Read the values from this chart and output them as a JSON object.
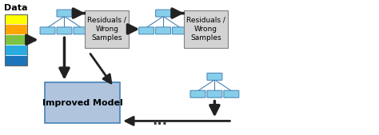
{
  "bg_color": "#ffffff",
  "data_colors": [
    "#ffff00",
    "#ffa500",
    "#7dc242",
    "#29abe2",
    "#1b75bb"
  ],
  "tree_node_color": "#87ceeb",
  "tree_node_edge": "#4682b4",
  "residuals_box_color": "#d3d3d3",
  "residuals_box_edge": "#808080",
  "improved_box_color": "#b0c4de",
  "improved_box_edge": "#4682b4",
  "arrow_color": "#222222",
  "data_label": "Data",
  "residuals_label": "Residuals /\nWrong\nSamples",
  "improved_label": "Improved Model",
  "dots_label": "...",
  "label_fontsize": 6.5,
  "data_fontsize": 8,
  "improved_fontsize": 8
}
